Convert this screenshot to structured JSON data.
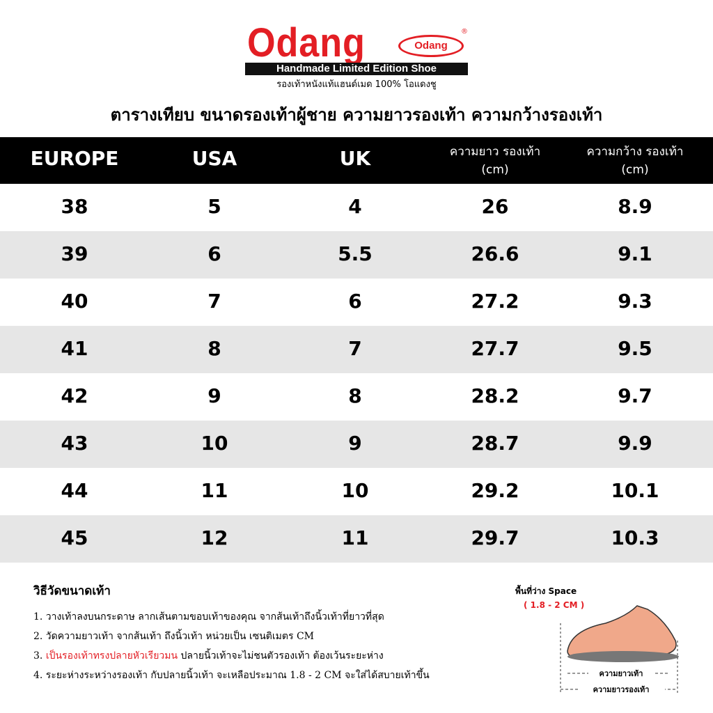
{
  "header": {
    "brand": "Odang",
    "badge": "Odang",
    "registered": "®",
    "tagline": "Handmade Limited Edition Shoe",
    "subtitle": "รองเท้าหนังแท้แฮนด์เมด 100% โอแดงชู"
  },
  "title": "ตารางเทียบ ขนาดรองเท้าผู้ชาย ความยาวรองเท้า ความกว้างรองเท้า",
  "table": {
    "headers": [
      [
        "EUROPE"
      ],
      [
        "USA"
      ],
      [
        "UK"
      ],
      [
        "ความยาว รองเท้า",
        "(cm)"
      ],
      [
        "ความกว้าง รองเท้า",
        "(cm)"
      ]
    ],
    "rows": [
      [
        38,
        5,
        4,
        26,
        8.9
      ],
      [
        39,
        6,
        5.5,
        26.6,
        9.1
      ],
      [
        40,
        7,
        6,
        27.2,
        9.3
      ],
      [
        41,
        8,
        7,
        27.7,
        9.5
      ],
      [
        42,
        9,
        8,
        28.2,
        9.7
      ],
      [
        43,
        10,
        9,
        28.7,
        9.9
      ],
      [
        44,
        11,
        10,
        29.2,
        10.1
      ],
      [
        45,
        12,
        11,
        29.7,
        10.3
      ]
    ]
  },
  "instructions": {
    "heading": "วิธีวัดขนาดเท้า",
    "items": [
      [
        "1. วางเท้าลงบนกระดาษ ลากเส้นตามขอบเท้าของคุณ จากส้นเท้าถึงนิ้วเท้าที่ยาวที่สุด"
      ],
      [
        "2. วัดความยาวเท้า จากส้นเท้า ถึงนิ้วเท้า  หน่วยเป็น เซนติเมตร CM"
      ],
      [
        "3. ",
        "เป็นรองเท้าทรงปลายหัวเรียวมน",
        " ปลายนิ้วเท้าจะไม่ชนตัวรองเท้า ต้องเว้นระยะห่าง"
      ],
      [
        "4. ระยะห่างระหว่างรองเท้า กับปลายนิ้วเท้า จะเหลือประมาณ 1.8 - 2 CM จะใส่ได้สบายเท้าขึ้น"
      ]
    ]
  },
  "diagram": {
    "space": "พื้นที่ว่าง Space",
    "space_range": "( 1.8 - 2 CM )",
    "foot_length": "ความยาวเท้า",
    "shoe_length": "ความยาวรองเท้า"
  }
}
